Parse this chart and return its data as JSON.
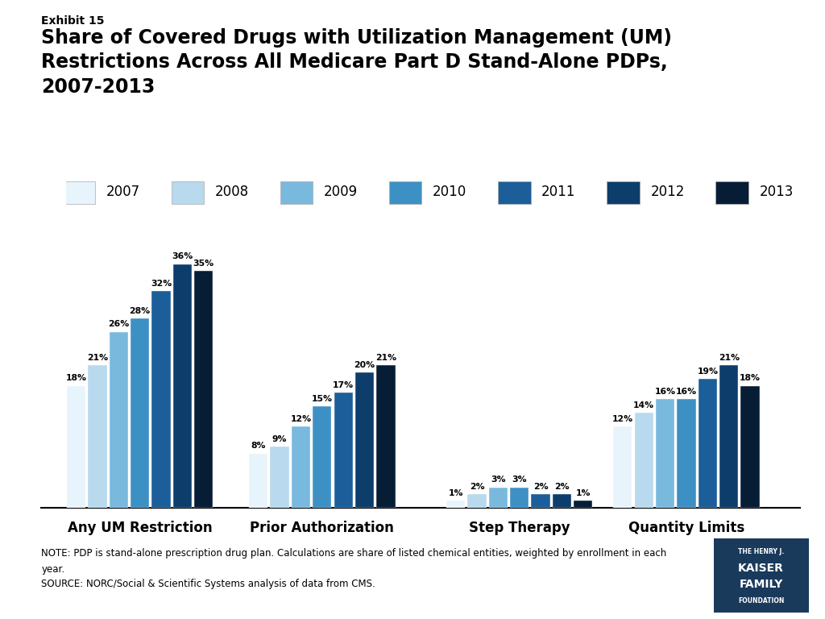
{
  "exhibit_label": "Exhibit 15",
  "title_line1": "Share of Covered Drugs with Utilization Management (UM)",
  "title_line2": "Restrictions Across All Medicare Part D Stand-Alone PDPs,",
  "title_line3": "2007-2013",
  "years": [
    "2007",
    "2008",
    "2009",
    "2010",
    "2011",
    "2012",
    "2013"
  ],
  "colors": [
    "#e8f4fb",
    "#b8d9ee",
    "#7ab9de",
    "#3d90c4",
    "#1b5e99",
    "#0d3d6b",
    "#071d36"
  ],
  "categories": [
    "Any UM Restriction",
    "Prior Authorization",
    "Step Therapy",
    "Quantity Limits"
  ],
  "data": {
    "Any UM Restriction": [
      18,
      21,
      26,
      28,
      32,
      36,
      35
    ],
    "Prior Authorization": [
      8,
      9,
      12,
      15,
      17,
      20,
      21
    ],
    "Step Therapy": [
      1,
      2,
      3,
      3,
      2,
      2,
      1
    ],
    "Quantity Limits": [
      12,
      14,
      16,
      16,
      19,
      21,
      18
    ]
  },
  "note_line1": "NOTE: PDP is stand-alone prescription drug plan. Calculations are share of listed chemical entities, weighted by enrollment in each",
  "note_line2": "year.",
  "note_line3": "SOURCE: NORC/Social & Scientific Systems analysis of data from CMS.",
  "ylim": [
    0,
    43
  ],
  "bar_width": 0.028,
  "group_positions": [
    0.13,
    0.37,
    0.63,
    0.85
  ]
}
